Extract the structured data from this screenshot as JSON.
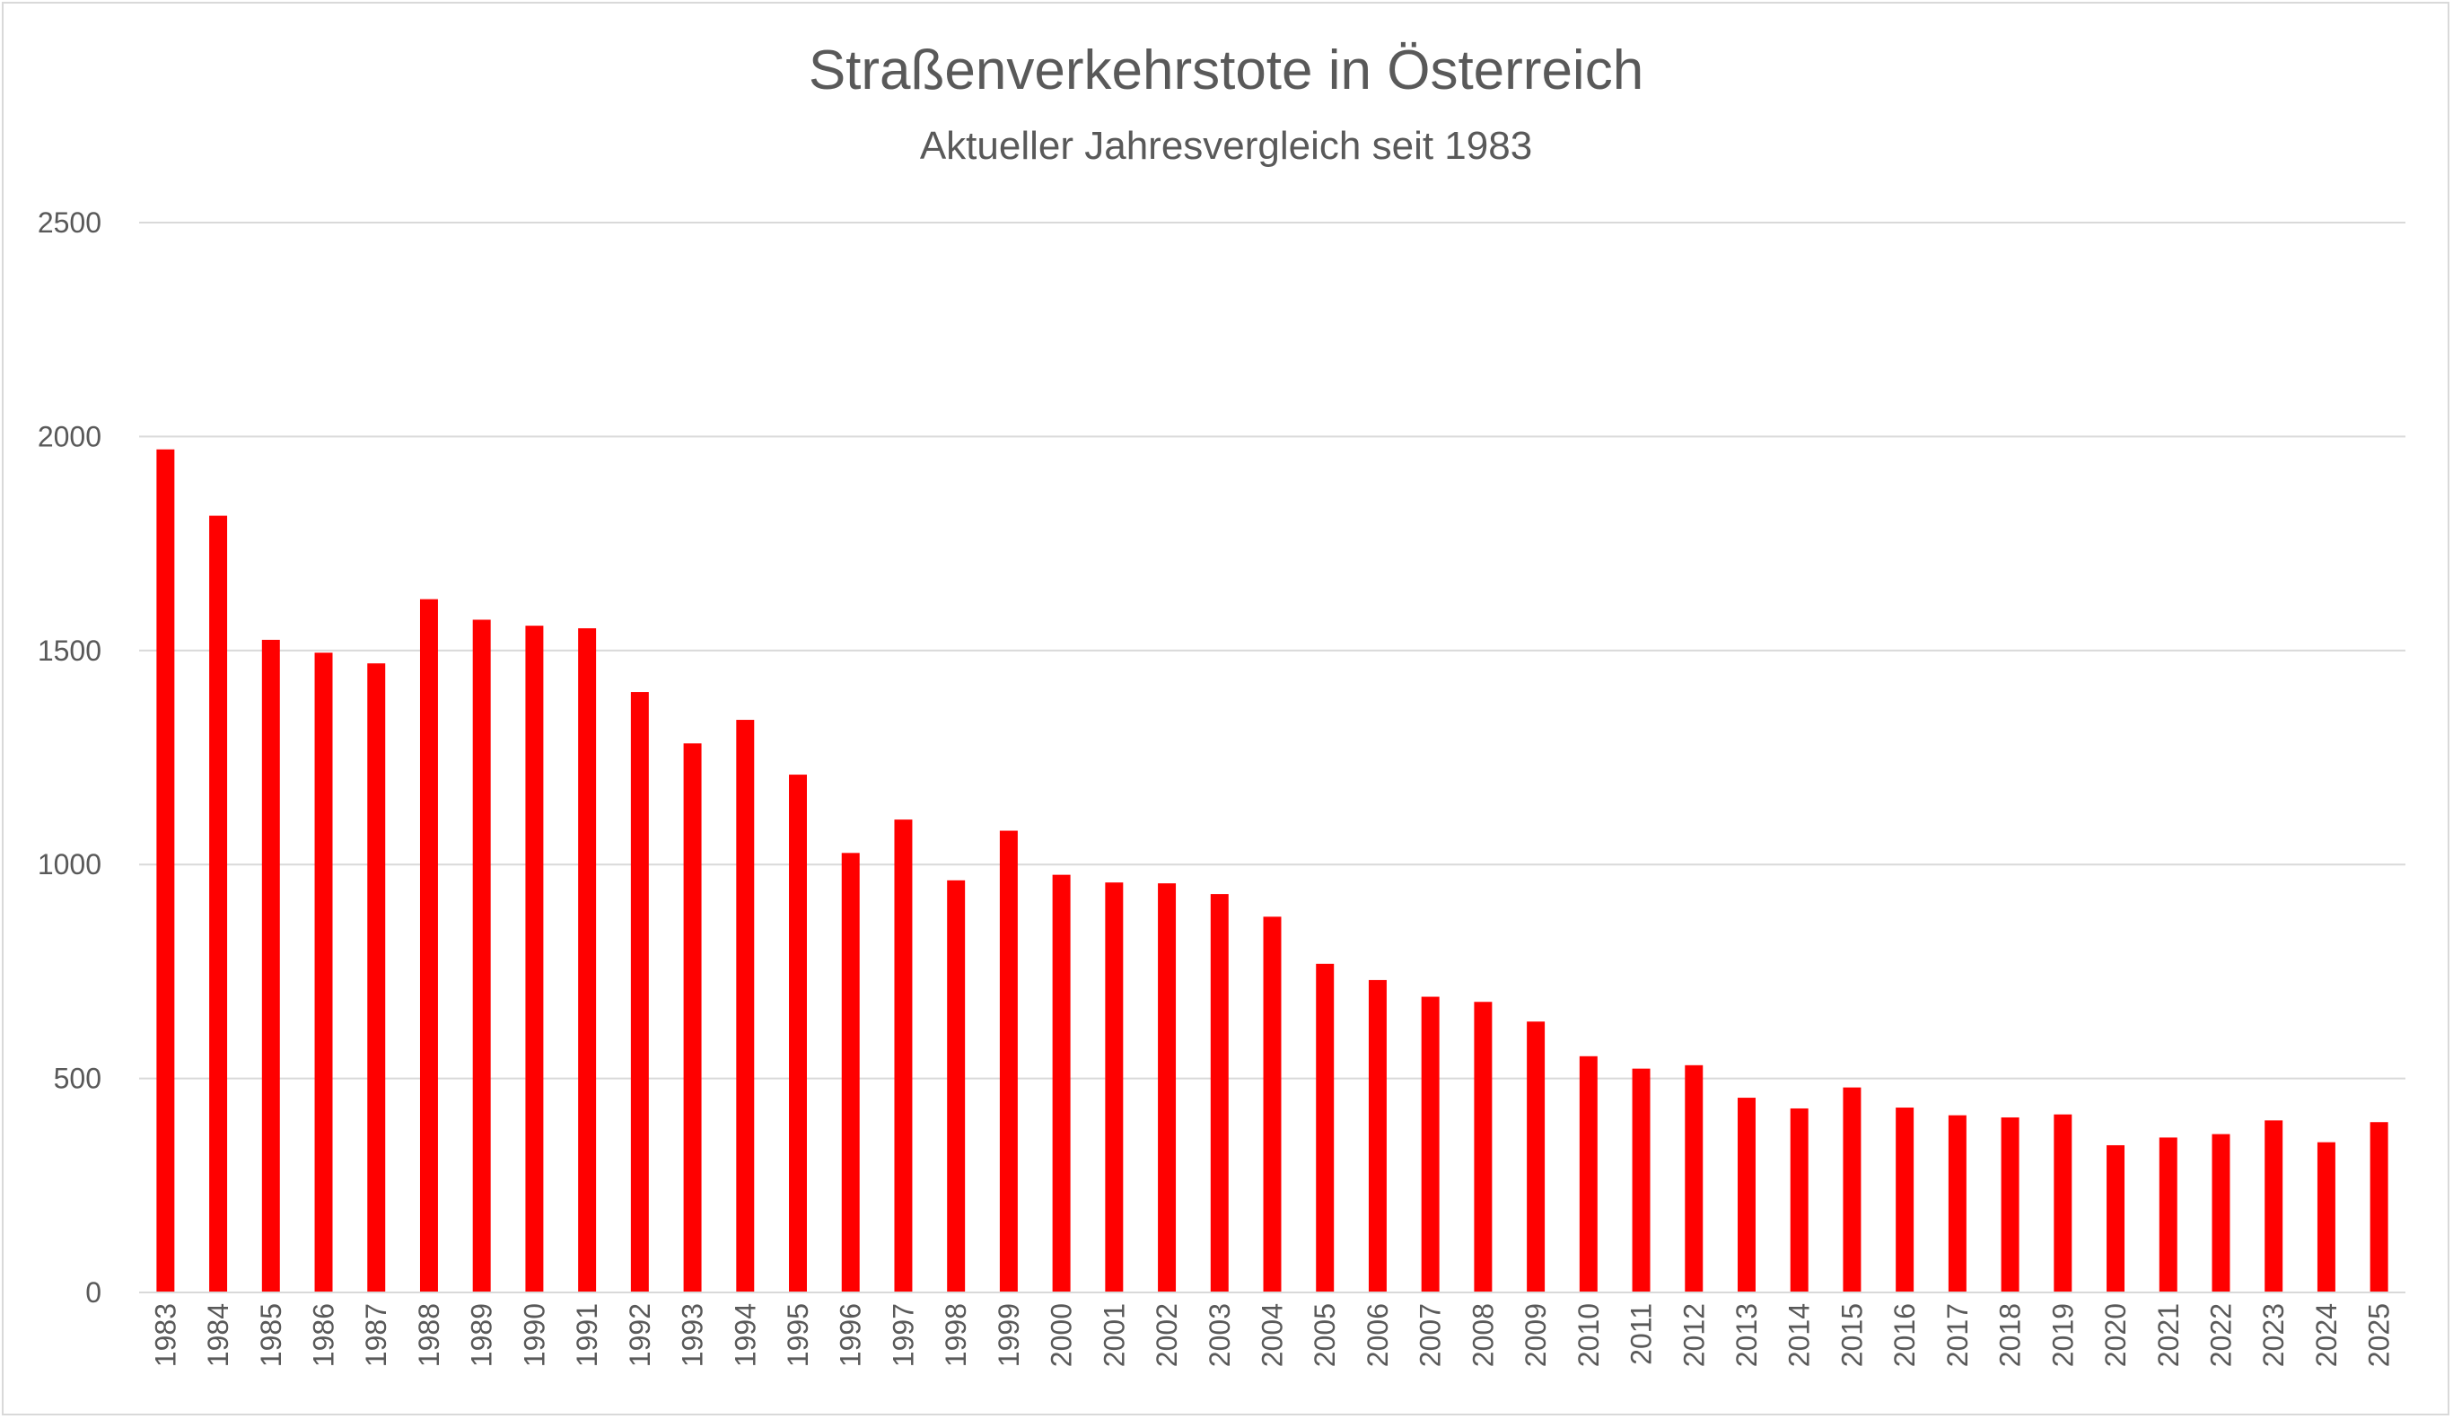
{
  "chart_data": {
    "type": "bar",
    "title": "Straßenverkehrstote in Österreich",
    "subtitle": "Aktueller Jahresvergleich seit 1983",
    "xlabel": "",
    "ylabel": "",
    "ylim": [
      0,
      2500
    ],
    "yticks": [
      "0",
      "500",
      "1000",
      "1500",
      "2000",
      "2500"
    ],
    "grid": true,
    "legend": "none",
    "bar_color": "#ff0000",
    "categories": [
      "1983",
      "1984",
      "1985",
      "1986",
      "1987",
      "1988",
      "1989",
      "1990",
      "1991",
      "1992",
      "1993",
      "1994",
      "1995",
      "1996",
      "1997",
      "1998",
      "1999",
      "2000",
      "2001",
      "2002",
      "2003",
      "2004",
      "2005",
      "2006",
      "2007",
      "2008",
      "2009",
      "2010",
      "2011",
      "2012",
      "2013",
      "2014",
      "2015",
      "2016",
      "2017",
      "2018",
      "2019",
      "2020",
      "2021",
      "2022",
      "2023",
      "2024",
      "2025"
    ],
    "values": [
      1970,
      1815,
      1525,
      1495,
      1470,
      1620,
      1572,
      1558,
      1552,
      1403,
      1283,
      1338,
      1210,
      1027,
      1105,
      963,
      1079,
      976,
      958,
      956,
      931,
      878,
      768,
      730,
      691,
      679,
      633,
      552,
      523,
      531,
      455,
      430,
      479,
      432,
      414,
      409,
      416,
      344,
      362,
      370,
      402,
      351,
      398
    ]
  }
}
